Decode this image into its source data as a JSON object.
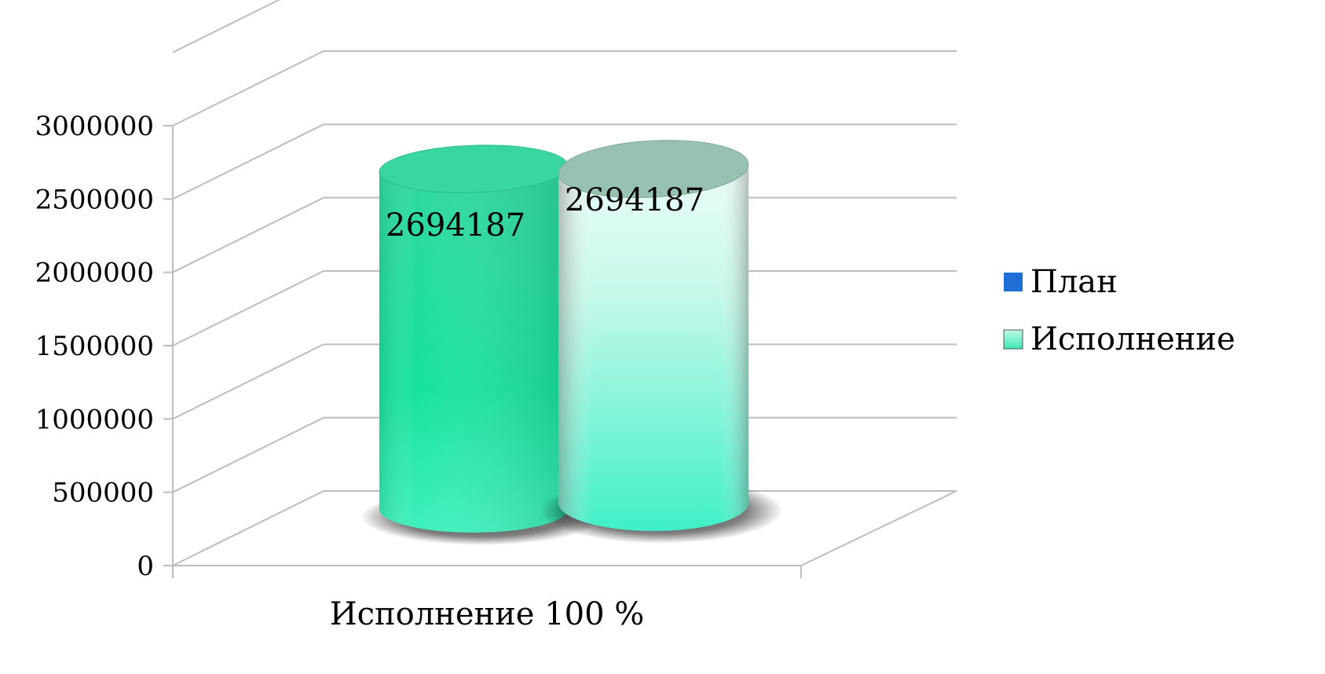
{
  "chart_data": {
    "type": "bar",
    "style": "3d-cylinder",
    "categories": [
      "Исполнение 100 %"
    ],
    "series": [
      {
        "name": "План",
        "values": [
          2694187
        ],
        "color": "#1f6fd6"
      },
      {
        "name": "Исполнение",
        "values": [
          2694187
        ],
        "color": "#3ee8b8"
      }
    ],
    "data_labels": [
      "2694187",
      "2694187"
    ],
    "yticks": [
      "0",
      "500000",
      "1000000",
      "1500000",
      "2000000",
      "2500000",
      "3000000"
    ],
    "ylim": [
      0,
      3000000
    ],
    "grid": true,
    "legend": "right"
  }
}
